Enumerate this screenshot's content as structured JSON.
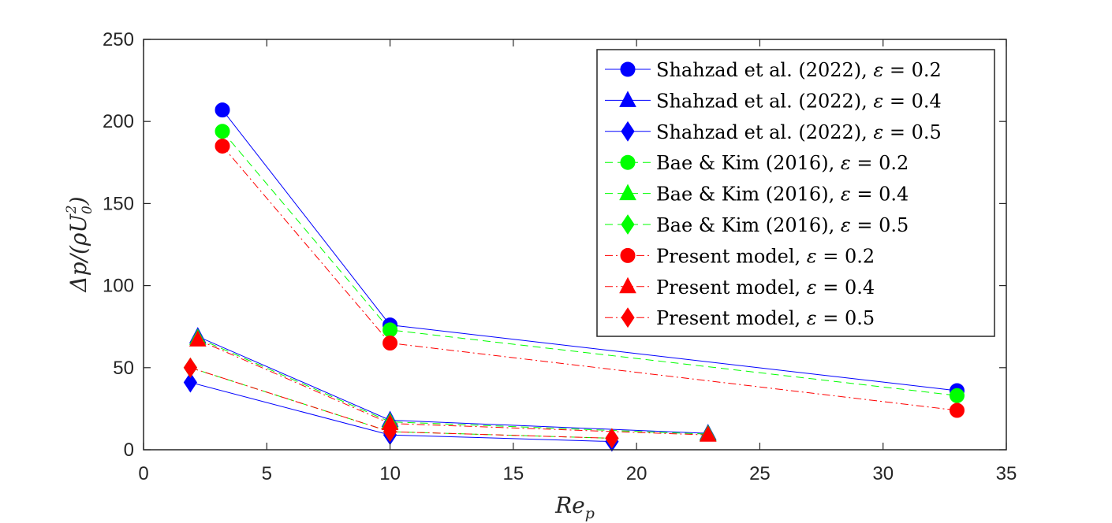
{
  "chart_data": {
    "type": "line",
    "title": "",
    "xlabel": "Re_p",
    "xlabel_main": "Re",
    "xlabel_sub": "p",
    "ylabel": "Δp/(ρU_0^2)",
    "ylabel_parts": {
      "head": "Δp/(ρU",
      "sub": "0",
      "sup": "2",
      "tail": ")"
    },
    "xlim": [
      0,
      35
    ],
    "ylim": [
      0,
      250
    ],
    "xticks": [
      0,
      5,
      10,
      15,
      20,
      25,
      30,
      35
    ],
    "yticks": [
      0,
      50,
      100,
      150,
      200,
      250
    ],
    "grid": false,
    "legend_position": "top-right",
    "series": [
      {
        "name": "Shahzad et al. (2022), ε = 0.2",
        "label_text": "Shahzad et al. (2022), ",
        "eps_value": "0.2",
        "color": "#0000ff",
        "marker": "circle",
        "linestyle": "solid",
        "x": [
          3.2,
          10,
          33
        ],
        "y": [
          207,
          76,
          36
        ]
      },
      {
        "name": "Shahzad et al. (2022), ε = 0.4",
        "label_text": "Shahzad et al. (2022), ",
        "eps_value": "0.4",
        "color": "#0000ff",
        "marker": "triangle",
        "linestyle": "solid",
        "x": [
          2.2,
          10,
          22.9
        ],
        "y": [
          69,
          18,
          10
        ]
      },
      {
        "name": "Shahzad et al. (2022), ε = 0.5",
        "label_text": "Shahzad et al. (2022), ",
        "eps_value": "0.5",
        "color": "#0000ff",
        "marker": "diamond",
        "linestyle": "solid",
        "x": [
          1.9,
          10,
          19
        ],
        "y": [
          41,
          9,
          5
        ]
      },
      {
        "name": "Bae & Kim (2016), ε = 0.2",
        "label_text": "Bae & Kim (2016), ",
        "eps_value": "0.2",
        "color": "#00ff00",
        "marker": "circle",
        "linestyle": "dashed",
        "x": [
          3.2,
          10,
          33
        ],
        "y": [
          194,
          73,
          33
        ]
      },
      {
        "name": "Bae & Kim (2016), ε = 0.4",
        "label_text": "Bae & Kim (2016), ",
        "eps_value": "0.4",
        "color": "#00ff00",
        "marker": "triangle",
        "linestyle": "dashed",
        "x": [
          2.2,
          10,
          22.9
        ],
        "y": [
          68,
          17,
          9.5
        ]
      },
      {
        "name": "Bae & Kim (2016), ε = 0.5",
        "label_text": "Bae & Kim (2016), ",
        "eps_value": "0.5",
        "color": "#00ff00",
        "marker": "diamond",
        "linestyle": "dashed",
        "x": [
          1.9,
          10,
          19
        ],
        "y": [
          50,
          11,
          7
        ]
      },
      {
        "name": "Present model, ε = 0.2",
        "label_text": "Present model, ",
        "eps_value": "0.2",
        "color": "#ff0000",
        "marker": "circle",
        "linestyle": "dashdot",
        "x": [
          3.2,
          10,
          33
        ],
        "y": [
          185,
          65,
          24
        ]
      },
      {
        "name": "Present model, ε = 0.4",
        "label_text": "Present model, ",
        "eps_value": "0.4",
        "color": "#ff0000",
        "marker": "triangle",
        "linestyle": "dashdot",
        "x": [
          2.2,
          10,
          22.9
        ],
        "y": [
          67,
          16,
          9
        ]
      },
      {
        "name": "Present model, ε = 0.5",
        "label_text": "Present model, ",
        "eps_value": "0.5",
        "color": "#ff0000",
        "marker": "diamond",
        "linestyle": "dashdot",
        "x": [
          1.9,
          10,
          19
        ],
        "y": [
          50,
          11,
          7
        ]
      }
    ]
  }
}
